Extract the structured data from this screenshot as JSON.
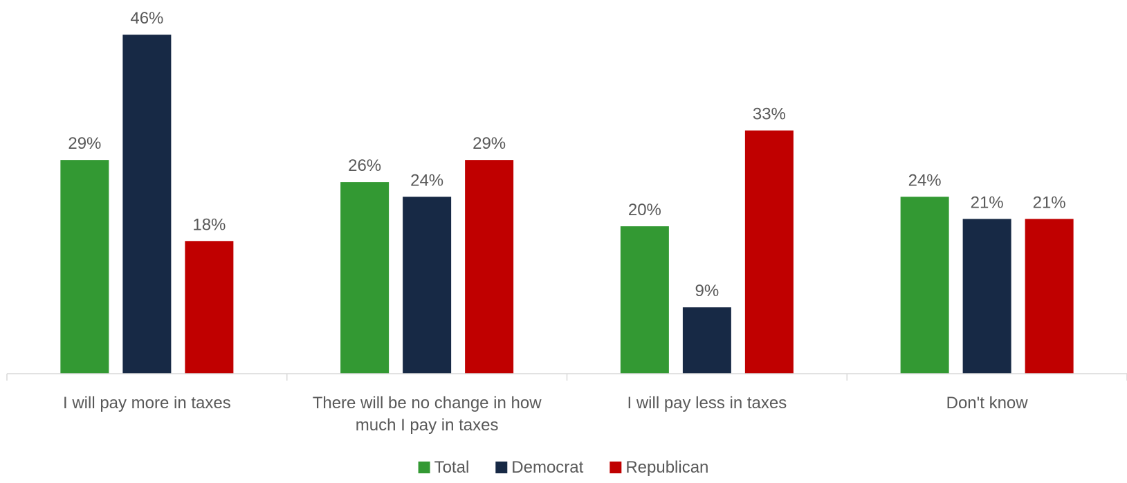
{
  "chart_data": {
    "type": "bar",
    "categories": [
      [
        "I will pay more in taxes"
      ],
      [
        "There will be no change in how",
        "much I pay in taxes"
      ],
      [
        "I will pay less in taxes"
      ],
      [
        "Don't know"
      ]
    ],
    "series": [
      {
        "name": "Total",
        "color": "#339933",
        "values": [
          29,
          26,
          20,
          24
        ]
      },
      {
        "name": "Democrat",
        "color": "#172945",
        "values": [
          46,
          24,
          9,
          21
        ]
      },
      {
        "name": "Republican",
        "color": "#c00000",
        "values": [
          18,
          29,
          33,
          21
        ]
      }
    ],
    "value_suffix": "%",
    "ylim": [
      0,
      50
    ],
    "grid": false,
    "legend_position": "bottom"
  }
}
